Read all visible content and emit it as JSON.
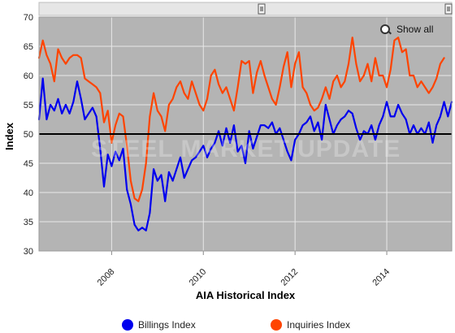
{
  "chart_data": {
    "type": "line",
    "title": "",
    "xlabel": "AIA Historical Index",
    "ylabel": "Index",
    "x_range": [
      "2006-06",
      "2015-06"
    ],
    "ylim": [
      30,
      70
    ],
    "y_ticks": [
      30,
      35,
      40,
      45,
      50,
      55,
      60,
      65,
      70
    ],
    "x_ticks": [
      "2008",
      "2010",
      "2012",
      "2014"
    ],
    "reference_line": 50,
    "grid": true,
    "legend_position": "bottom",
    "background": "#b4b4b4",
    "x_dates": [
      "2006-06",
      "2006-07",
      "2006-08",
      "2006-09",
      "2006-10",
      "2006-11",
      "2006-12",
      "2007-01",
      "2007-02",
      "2007-03",
      "2007-04",
      "2007-05",
      "2007-06",
      "2007-07",
      "2007-08",
      "2007-09",
      "2007-10",
      "2007-11",
      "2007-12",
      "2008-01",
      "2008-02",
      "2008-03",
      "2008-04",
      "2008-05",
      "2008-06",
      "2008-07",
      "2008-08",
      "2008-09",
      "2008-10",
      "2008-11",
      "2008-12",
      "2009-01",
      "2009-02",
      "2009-03",
      "2009-04",
      "2009-05",
      "2009-06",
      "2009-07",
      "2009-08",
      "2009-09",
      "2009-10",
      "2009-11",
      "2009-12",
      "2010-01",
      "2010-02",
      "2010-03",
      "2010-04",
      "2010-05",
      "2010-06",
      "2010-07",
      "2010-08",
      "2010-09",
      "2010-10",
      "2010-11",
      "2010-12",
      "2011-01",
      "2011-02",
      "2011-03",
      "2011-04",
      "2011-05",
      "2011-06",
      "2011-07",
      "2011-08",
      "2011-09",
      "2011-10",
      "2011-11",
      "2011-12",
      "2012-01",
      "2012-02",
      "2012-03",
      "2012-04",
      "2012-05",
      "2012-06",
      "2012-07",
      "2012-08",
      "2012-09",
      "2012-10",
      "2012-11",
      "2012-12",
      "2013-01",
      "2013-02",
      "2013-03",
      "2013-04",
      "2013-05",
      "2013-06",
      "2013-07",
      "2013-08",
      "2013-09",
      "2013-10",
      "2013-11",
      "2013-12",
      "2014-01",
      "2014-02",
      "2014-03",
      "2014-04",
      "2014-05",
      "2014-06",
      "2014-07",
      "2014-08",
      "2014-09",
      "2014-10",
      "2014-11",
      "2014-12",
      "2015-01",
      "2015-02",
      "2015-03",
      "2015-04",
      "2015-05",
      "2015-06"
    ],
    "series": [
      {
        "name": "Billings Index",
        "color": "#0000ee",
        "values": [
          52.5,
          59.5,
          52.5,
          55,
          54,
          56,
          53.5,
          55,
          53.5,
          55.5,
          59,
          56,
          52.5,
          53.5,
          54.5,
          53,
          47.5,
          41,
          46.5,
          44.5,
          47,
          45.5,
          47.5,
          40.5,
          38,
          34.5,
          33.5,
          34,
          33.5,
          36.5,
          44,
          42,
          43,
          38.5,
          43.5,
          42,
          44,
          46,
          42.5,
          44,
          45.5,
          46,
          47,
          48,
          46,
          47.5,
          48.5,
          50.5,
          48,
          51,
          48.5,
          51.5,
          47,
          48,
          45,
          50.5,
          47.5,
          49.5,
          51.5,
          51.5,
          51,
          52,
          50,
          51,
          49,
          47,
          45.5,
          49,
          50,
          51.5,
          52,
          53,
          50.5,
          52,
          49,
          55,
          52.5,
          50,
          51.5,
          52.5,
          53,
          54,
          53.5,
          51,
          49,
          50.5,
          50,
          51.5,
          49,
          51.5,
          53,
          55.5,
          53,
          53,
          55,
          53.5,
          52.5,
          50,
          51.5,
          50,
          51,
          50,
          52,
          48.5,
          51.5,
          53,
          55.5,
          53,
          55.5
        ]
      },
      {
        "name": "Inquiries Index",
        "color": "#ff4400",
        "values": [
          63,
          66,
          63.5,
          62,
          59,
          64.5,
          63,
          62,
          63,
          63.5,
          63.5,
          63,
          59.5,
          59,
          58.5,
          58,
          57,
          52,
          54,
          48.5,
          51.5,
          53.5,
          53,
          48,
          42,
          39,
          38.5,
          40.5,
          45,
          53,
          57,
          54,
          53,
          50.5,
          55,
          56,
          58,
          59,
          57,
          56,
          59,
          57,
          55,
          54,
          56,
          60,
          61,
          58.5,
          57,
          58,
          56,
          54,
          58,
          62.5,
          62,
          62.5,
          57,
          60.5,
          62.5,
          60,
          58,
          56,
          55,
          58,
          61.5,
          64,
          58,
          62,
          64,
          58,
          57,
          55,
          54,
          54.5,
          56,
          58,
          56,
          59,
          60,
          58,
          59,
          62,
          66.5,
          62,
          59,
          60,
          62,
          59,
          63,
          60,
          60,
          58,
          61,
          66,
          66.5,
          64,
          64.5,
          60,
          60,
          58,
          59,
          58,
          57,
          58,
          59.5,
          62,
          63
        ]
      }
    ]
  },
  "ui": {
    "show_all_label": "Show all",
    "watermark": "STEEL MARKET UPDATE"
  }
}
